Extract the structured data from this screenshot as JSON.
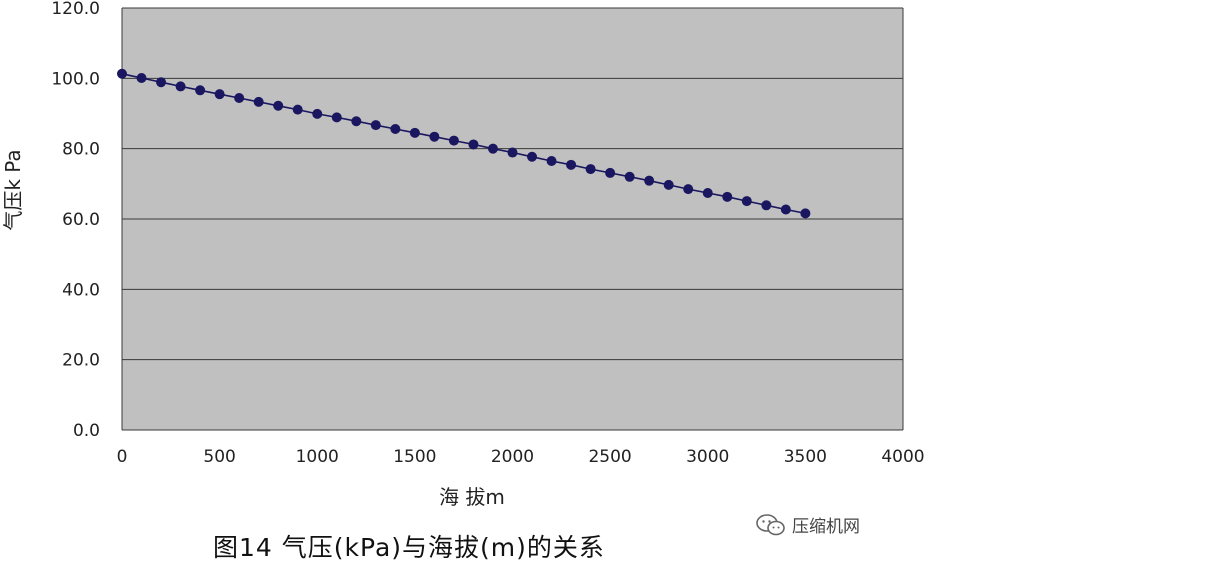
{
  "chart_data": {
    "type": "line",
    "title": "",
    "xlabel": "海 拔m",
    "ylabel": "气压k Pa",
    "xlim": [
      0,
      4000
    ],
    "ylim": [
      0,
      120
    ],
    "xticks": [
      0,
      500,
      1000,
      1500,
      2000,
      2500,
      3000,
      3500,
      4000
    ],
    "xtick_labels": [
      "0",
      "500",
      "1000",
      "1500",
      "2000",
      "2500",
      "3000",
      "3500",
      "4000"
    ],
    "yticks": [
      0,
      20,
      40,
      60,
      80,
      100,
      120
    ],
    "ytick_labels": [
      "0.0",
      "20.0",
      "40.0",
      "60.0",
      "80.0",
      "100.0",
      "120.0"
    ],
    "grid": "horizontal",
    "plot_background": "#c0c0c0",
    "series": [
      {
        "color": "#1a1660",
        "x": [
          0,
          100,
          200,
          300,
          400,
          500,
          600,
          700,
          800,
          900,
          1000,
          1100,
          1200,
          1300,
          1400,
          1500,
          1600,
          1700,
          1800,
          1900,
          2000,
          2100,
          2200,
          2300,
          2400,
          2500,
          2600,
          2700,
          2800,
          2900,
          3000,
          3100,
          3200,
          3300,
          3400,
          3500
        ],
        "y": [
          101.3,
          100.1,
          98.9,
          97.7,
          96.6,
          95.5,
          94.4,
          93.3,
          92.2,
          91.1,
          89.9,
          88.9,
          87.8,
          86.7,
          85.6,
          84.5,
          83.4,
          82.3,
          81.2,
          80.0,
          78.9,
          77.7,
          76.5,
          75.4,
          74.2,
          73.1,
          72.0,
          70.9,
          69.7,
          68.5,
          67.4,
          66.3,
          65.1,
          63.9,
          62.7,
          61.6
        ]
      }
    ]
  },
  "caption": "图14  气压(kPa)与海拔(m)的关系",
  "watermark": {
    "text": "压缩机网",
    "icon": "wechat-icon"
  }
}
